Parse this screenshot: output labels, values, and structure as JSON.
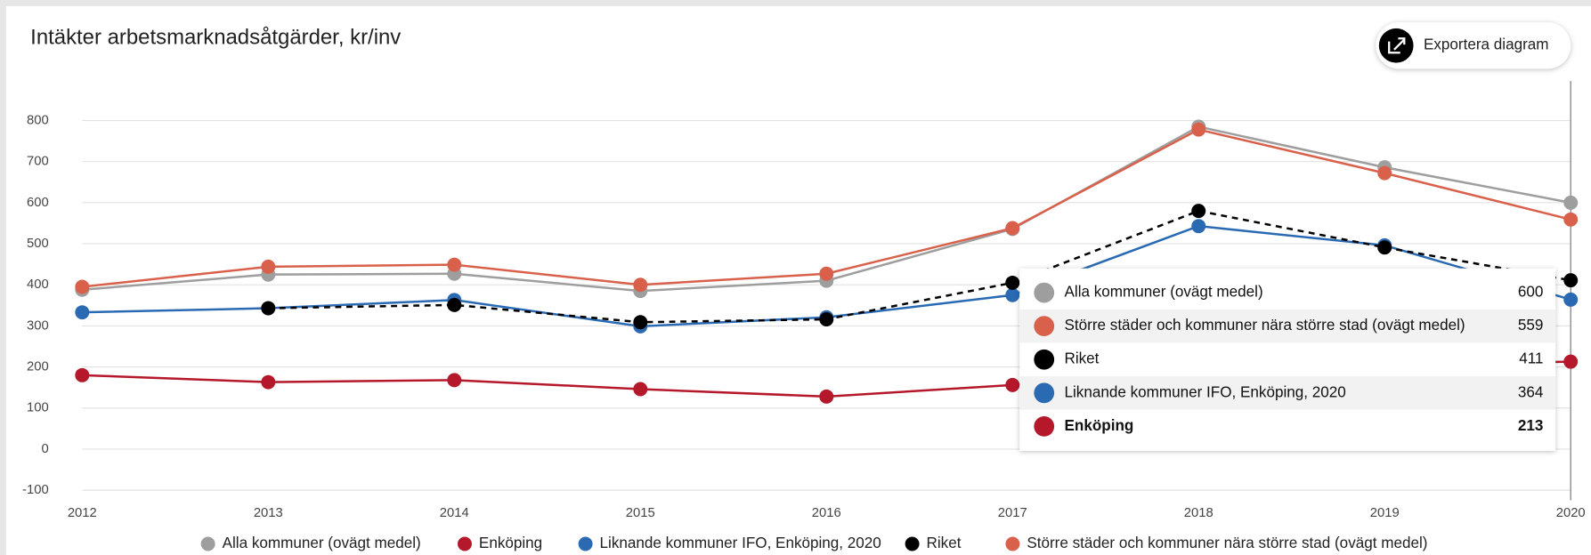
{
  "chart_data": {
    "type": "line",
    "title": "Intäkter arbetsmarknadsåtgärder, kr/inv",
    "categories": [
      "2012",
      "2013",
      "2014",
      "2015",
      "2016",
      "2017",
      "2018",
      "2019",
      "2020"
    ],
    "series": [
      {
        "name": "Alla kommuner (ovägt medel)",
        "color": "#9e9e9e",
        "values": [
          388,
          425,
          427,
          385,
          410,
          536,
          785,
          686,
          600
        ]
      },
      {
        "name": "Enköping",
        "color": "#b5182b",
        "values": [
          180,
          163,
          168,
          146,
          128,
          156,
          190,
          205,
          213
        ]
      },
      {
        "name": "Liknande kommuner IFO, Enköping, 2020",
        "color": "#2a6ab3",
        "values": [
          333,
          343,
          363,
          299,
          321,
          375,
          543,
          496,
          364
        ]
      },
      {
        "name": "Riket",
        "color": "#000000",
        "dashed": true,
        "values": [
          null,
          343,
          351,
          309,
          316,
          405,
          580,
          491,
          411
        ]
      },
      {
        "name": "Större städer och kommuner nära större stad (ovägt medel)",
        "color": "#d9614c",
        "values": [
          395,
          444,
          449,
          400,
          427,
          538,
          778,
          672,
          559
        ]
      }
    ],
    "ylim": [
      -100,
      800
    ],
    "yticks": [
      -100,
      0,
      100,
      200,
      300,
      400,
      500,
      600,
      700,
      800
    ],
    "grid": true
  },
  "export_button": "Exportera diagram"
}
